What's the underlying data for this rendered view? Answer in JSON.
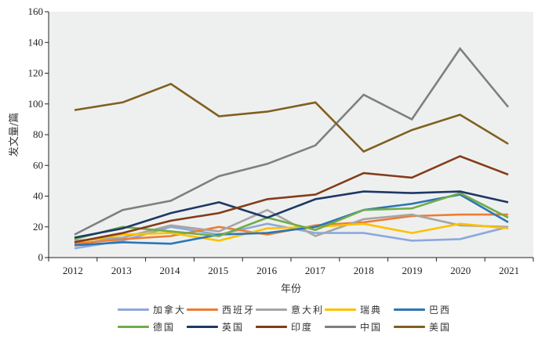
{
  "chart_data": {
    "type": "line",
    "title": "",
    "xlabel": "年份",
    "ylabel": "发文量/篇",
    "x": [
      "2012",
      "2013",
      "2014",
      "2015",
      "2016",
      "2017",
      "2018",
      "2019",
      "2020",
      "2021"
    ],
    "ylim": [
      0,
      160
    ],
    "yticks": [
      "0",
      "20",
      "40",
      "60",
      "80",
      "100",
      "120",
      "140",
      "160"
    ],
    "grid": false,
    "legend_position": "bottom",
    "series": [
      {
        "name": "加拿大",
        "color": "#8ea8db",
        "values": [
          6,
          11,
          20,
          15,
          22,
          16,
          16,
          11,
          12,
          20
        ]
      },
      {
        "name": "西班牙",
        "color": "#ed7d31",
        "values": [
          9,
          12,
          14,
          20,
          15,
          21,
          23,
          27,
          28,
          28
        ]
      },
      {
        "name": "意大利",
        "color": "#a5a5a5",
        "values": [
          11,
          13,
          21,
          17,
          31,
          14,
          25,
          28,
          21,
          20
        ]
      },
      {
        "name": "瑞典",
        "color": "#ffc000",
        "values": [
          10,
          15,
          16,
          11,
          19,
          20,
          22,
          16,
          22,
          19
        ]
      },
      {
        "name": "巴西",
        "color": "#2e75b6",
        "values": [
          8,
          10,
          9,
          15,
          16,
          20,
          31,
          35,
          41,
          23
        ]
      },
      {
        "name": "德国",
        "color": "#70ad47",
        "values": [
          12,
          20,
          17,
          14,
          26,
          18,
          31,
          32,
          42,
          26
        ]
      },
      {
        "name": "英国",
        "color": "#1f3864",
        "values": [
          13,
          19,
          29,
          36,
          26,
          38,
          43,
          42,
          43,
          36
        ]
      },
      {
        "name": "印度",
        "color": "#843c18",
        "values": [
          10,
          16,
          24,
          29,
          38,
          41,
          55,
          52,
          66,
          54
        ]
      },
      {
        "name": "中国",
        "color": "#7f7f7f",
        "values": [
          15,
          31,
          37,
          53,
          61,
          73,
          106,
          90,
          136,
          98
        ]
      },
      {
        "name": "美国",
        "color": "#806020",
        "values": [
          96,
          101,
          113,
          92,
          95,
          101,
          69,
          83,
          93,
          74
        ]
      }
    ]
  }
}
